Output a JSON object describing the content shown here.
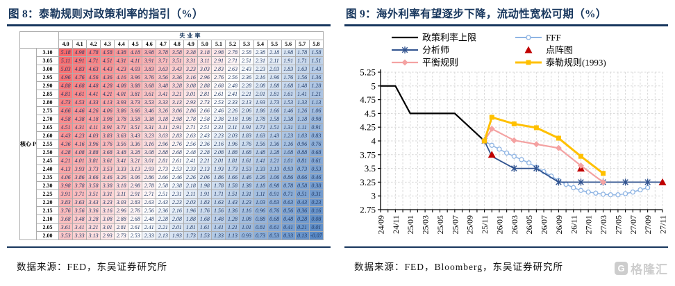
{
  "left_panel": {
    "title": "图 8：泰勒规则对政策利率的指引（%）",
    "source": "数据来源：FED，东吴证券研究所",
    "accent_color": "#17365D",
    "table": {
      "top_header": "失业率",
      "corner_label_lines": [
        "核心",
        "PCE"
      ],
      "col_headers": [
        "4.0",
        "4.1",
        "4.2",
        "4.3",
        "4.4",
        "4.5",
        "4.6",
        "4.7",
        "4.8",
        "4.9",
        "5.0",
        "5.1",
        "5.2",
        "5.3",
        "5.4",
        "5.5",
        "5.6",
        "5.7",
        "5.8"
      ],
      "row_headers": [
        "3.10",
        "3.05",
        "3.00",
        "2.95",
        "2.90",
        "2.85",
        "2.80",
        "2.75",
        "2.70",
        "2.65",
        "2.60",
        "2.55",
        "2.50",
        "2.45",
        "2.40",
        "2.35",
        "2.30",
        "2.25",
        "2.20",
        "2.15",
        "2.10",
        "2.05",
        "2.00"
      ],
      "values": [
        [
          5.18,
          4.98,
          4.78,
          4.58,
          4.38,
          4.18,
          3.98,
          3.78,
          3.58,
          3.38,
          3.18,
          2.98,
          2.78,
          2.58,
          2.38,
          2.18,
          1.98,
          1.78,
          1.58
        ],
        [
          5.11,
          4.91,
          4.71,
          4.51,
          4.31,
          4.11,
          3.91,
          3.71,
          3.51,
          3.31,
          3.11,
          2.91,
          2.71,
          2.51,
          2.31,
          2.11,
          1.91,
          1.71,
          1.51
        ],
        [
          5.03,
          4.83,
          4.63,
          4.43,
          4.23,
          4.03,
          3.83,
          3.63,
          3.43,
          3.23,
          3.03,
          2.83,
          2.63,
          2.43,
          2.23,
          2.03,
          1.83,
          1.63,
          1.43
        ],
        [
          4.96,
          4.76,
          4.56,
          4.36,
          4.16,
          3.96,
          3.76,
          3.56,
          3.36,
          3.16,
          2.96,
          2.76,
          2.56,
          2.36,
          2.16,
          1.96,
          1.76,
          1.56,
          1.36
        ],
        [
          4.88,
          4.68,
          4.48,
          4.28,
          4.08,
          3.88,
          3.68,
          3.48,
          3.28,
          3.08,
          2.88,
          2.68,
          2.48,
          2.28,
          2.08,
          1.88,
          1.68,
          1.48,
          1.28
        ],
        [
          4.81,
          4.61,
          4.41,
          4.21,
          4.01,
          3.81,
          3.61,
          3.41,
          3.21,
          3.01,
          2.81,
          2.61,
          2.41,
          2.21,
          2.01,
          1.81,
          1.61,
          1.41,
          1.21
        ],
        [
          4.73,
          4.53,
          4.33,
          4.13,
          3.93,
          3.73,
          3.53,
          3.33,
          3.13,
          2.93,
          2.73,
          2.53,
          2.33,
          2.13,
          1.93,
          1.73,
          1.53,
          1.33,
          1.13
        ],
        [
          4.66,
          4.46,
          4.26,
          4.06,
          3.86,
          3.66,
          3.46,
          3.26,
          3.06,
          2.86,
          2.66,
          2.46,
          2.26,
          2.06,
          1.86,
          1.66,
          1.46,
          1.26,
          1.06
        ],
        [
          4.58,
          4.38,
          4.18,
          3.98,
          3.78,
          3.58,
          3.38,
          3.18,
          2.98,
          2.78,
          2.58,
          2.38,
          2.18,
          1.98,
          1.78,
          1.58,
          1.38,
          1.18,
          0.98
        ],
        [
          4.51,
          4.31,
          4.11,
          3.91,
          3.71,
          3.51,
          3.31,
          3.11,
          2.91,
          2.71,
          2.51,
          2.31,
          2.11,
          1.91,
          1.71,
          1.51,
          1.31,
          1.11,
          0.91
        ],
        [
          4.43,
          4.23,
          4.03,
          3.83,
          3.63,
          3.43,
          3.23,
          3.03,
          2.83,
          2.63,
          2.43,
          2.23,
          2.03,
          1.83,
          1.63,
          1.43,
          1.23,
          1.03,
          0.83
        ],
        [
          4.36,
          4.16,
          3.96,
          3.76,
          3.56,
          3.36,
          3.16,
          2.96,
          2.76,
          2.56,
          2.36,
          2.16,
          1.96,
          1.76,
          1.56,
          1.36,
          1.16,
          0.96,
          0.76
        ],
        [
          4.28,
          4.08,
          3.88,
          3.68,
          3.48,
          3.28,
          3.08,
          2.88,
          2.68,
          2.48,
          2.28,
          2.08,
          1.88,
          1.68,
          1.48,
          1.28,
          1.08,
          0.88,
          0.68
        ],
        [
          4.21,
          4.01,
          3.81,
          3.61,
          3.41,
          3.21,
          3.01,
          2.81,
          2.61,
          2.41,
          2.21,
          2.01,
          1.81,
          1.61,
          1.41,
          1.21,
          1.01,
          0.81,
          0.61
        ],
        [
          4.13,
          3.93,
          3.73,
          3.53,
          3.33,
          3.13,
          2.93,
          2.73,
          2.53,
          2.33,
          2.13,
          1.93,
          1.73,
          1.53,
          1.33,
          1.13,
          0.93,
          0.73,
          0.53
        ],
        [
          4.06,
          3.86,
          3.66,
          3.46,
          3.26,
          3.06,
          2.86,
          2.66,
          2.46,
          2.26,
          2.06,
          1.86,
          1.66,
          1.46,
          1.26,
          1.06,
          0.86,
          0.66,
          0.46
        ],
        [
          3.98,
          3.78,
          3.58,
          3.38,
          3.18,
          2.98,
          2.78,
          2.58,
          2.38,
          2.18,
          1.98,
          1.78,
          1.58,
          1.38,
          1.18,
          0.98,
          0.78,
          0.58,
          0.38
        ],
        [
          3.91,
          3.71,
          3.51,
          3.31,
          3.11,
          2.91,
          2.71,
          2.51,
          2.31,
          2.11,
          1.91,
          1.71,
          1.51,
          1.31,
          1.11,
          0.91,
          0.71,
          0.51,
          0.31
        ],
        [
          3.83,
          3.63,
          3.43,
          3.23,
          3.03,
          2.83,
          2.63,
          2.43,
          2.23,
          2.03,
          1.83,
          1.63,
          1.43,
          1.23,
          1.03,
          0.83,
          0.63,
          0.43,
          0.23
        ],
        [
          3.76,
          3.56,
          3.36,
          3.16,
          2.96,
          2.76,
          2.56,
          2.36,
          2.16,
          1.96,
          1.76,
          1.56,
          1.36,
          1.16,
          0.96,
          0.76,
          0.56,
          0.36,
          0.16
        ],
        [
          3.68,
          3.48,
          3.28,
          3.08,
          2.88,
          2.68,
          2.48,
          2.28,
          2.08,
          1.88,
          1.68,
          1.48,
          1.28,
          1.08,
          0.88,
          0.68,
          0.48,
          0.28,
          0.08
        ],
        [
          3.61,
          3.41,
          3.21,
          3.01,
          2.81,
          2.61,
          2.41,
          2.21,
          2.01,
          1.81,
          1.61,
          1.41,
          1.21,
          1.01,
          0.81,
          0.61,
          0.41,
          0.21,
          0.01
        ],
        [
          3.53,
          3.33,
          3.13,
          2.93,
          2.73,
          2.53,
          2.33,
          2.13,
          1.93,
          1.73,
          1.53,
          1.33,
          1.13,
          0.93,
          0.73,
          0.53,
          0.33,
          0.13,
          -0.07
        ]
      ],
      "color_scale": {
        "max": 5.18,
        "mid": 2.55,
        "min": -0.07,
        "max_color": "#F8696B",
        "mid_color": "#FFFFFF",
        "min_color": "#5A8AC6"
      },
      "cell_text_color": "#1F3864"
    }
  },
  "right_panel": {
    "title": "图 9：海外利率有望逐步下降，流动性宽松可期（%）",
    "source": "数据来源：FED，Bloomberg，东吴证券研究所",
    "accent_color": "#17365D",
    "watermark": {
      "icon": "G",
      "text": "格隆汇",
      "color": "#cbcbcb"
    },
    "chart_data": {
      "type": "line",
      "x_labels": [
        "24/09",
        "24/11",
        "25/01",
        "25/03",
        "25/05",
        "25/07",
        "25/09",
        "25/11",
        "26/01",
        "26/03",
        "26/05",
        "26/07",
        "26/09",
        "26/11",
        "27/01",
        "27/03",
        "27/05",
        "27/07",
        "27/09",
        "27/11"
      ],
      "x_months_total": 39,
      "x_label_every_months": 2,
      "ylim": [
        2.75,
        5.25
      ],
      "y_ticks": [
        "5.25",
        "5",
        "4.75",
        "4.5",
        "4.25",
        "4",
        "3.75",
        "3.5",
        "3.25",
        "3",
        "2.75"
      ],
      "y_tick_values": [
        5.25,
        5,
        4.75,
        4.5,
        4.25,
        4,
        3.75,
        3.5,
        3.25,
        3,
        2.75
      ],
      "grid": "dashed",
      "grid_color": "#D8D8D8",
      "legend_position": "top",
      "series": [
        {
          "name": "政策利率上限",
          "color": "#000000",
          "marker": "none",
          "width": 2.2,
          "points": [
            [
              0,
              5.0
            ],
            [
              2,
              5.0
            ],
            [
              4,
              4.5
            ],
            [
              10,
              4.5
            ],
            [
              14,
              4.0
            ]
          ]
        },
        {
          "name": "FFF",
          "color": "#8EB4E3",
          "marker": "circle-open",
          "width": 1.5,
          "points": [
            [
              14,
              4.0
            ],
            [
              15,
              3.92
            ],
            [
              16,
              3.85
            ],
            [
              17,
              3.78
            ],
            [
              18,
              3.72
            ],
            [
              19,
              3.66
            ],
            [
              20,
              3.6
            ],
            [
              21,
              3.52
            ],
            [
              22,
              3.44
            ],
            [
              23,
              3.36
            ],
            [
              24,
              3.28
            ],
            [
              25,
              3.21
            ],
            [
              26,
              3.15
            ],
            [
              27,
              3.1
            ],
            [
              28,
              3.07
            ],
            [
              29,
              3.05
            ],
            [
              30,
              3.03
            ],
            [
              31,
              3.02
            ],
            [
              32,
              3.02
            ],
            [
              33,
              3.04
            ],
            [
              34,
              3.07
            ],
            [
              35,
              3.11
            ],
            [
              36,
              3.15
            ]
          ]
        },
        {
          "name": "分析师",
          "color": "#31538F",
          "marker": "asterisk",
          "width": 1.8,
          "points": [
            [
              14,
              4.0
            ],
            [
              15,
              3.72
            ],
            [
              18,
              3.5
            ],
            [
              21,
              3.5
            ],
            [
              24,
              3.25
            ],
            [
              27,
              3.25
            ],
            [
              30,
              3.25
            ],
            [
              33,
              3.25
            ],
            [
              36,
              3.25
            ],
            [
              38,
              3.25
            ]
          ],
          "marker_points": [
            [
              14,
              4.0
            ],
            [
              18,
              3.5
            ],
            [
              21,
              3.5
            ],
            [
              24,
              3.25
            ],
            [
              27,
              3.25
            ],
            [
              30,
              3.25
            ],
            [
              33,
              3.25
            ],
            [
              36,
              3.25
            ]
          ]
        },
        {
          "name": "点阵图",
          "color": "#C00000",
          "marker": "triangle",
          "width": 0,
          "line": false,
          "points": [
            [
              15,
              3.75
            ],
            [
              27,
              3.5
            ],
            [
              38,
              3.25
            ]
          ]
        },
        {
          "name": "平衡规则",
          "color": "#F4A2A2",
          "marker": "diamond",
          "width": 2.2,
          "points": [
            [
              14,
              4.0
            ],
            [
              15,
              4.22
            ],
            [
              18,
              4.01
            ],
            [
              21,
              3.94
            ],
            [
              24,
              3.87
            ],
            [
              27,
              3.55
            ],
            [
              30,
              3.25
            ]
          ]
        },
        {
          "name": "泰勒规则(1993)",
          "color": "#FFC000",
          "marker": "square",
          "width": 3,
          "points": [
            [
              14,
              4.0
            ],
            [
              15,
              4.43
            ],
            [
              18,
              4.31
            ],
            [
              21,
              4.24
            ],
            [
              24,
              4.05
            ],
            [
              27,
              3.72
            ],
            [
              30,
              3.41
            ]
          ]
        }
      ]
    }
  }
}
